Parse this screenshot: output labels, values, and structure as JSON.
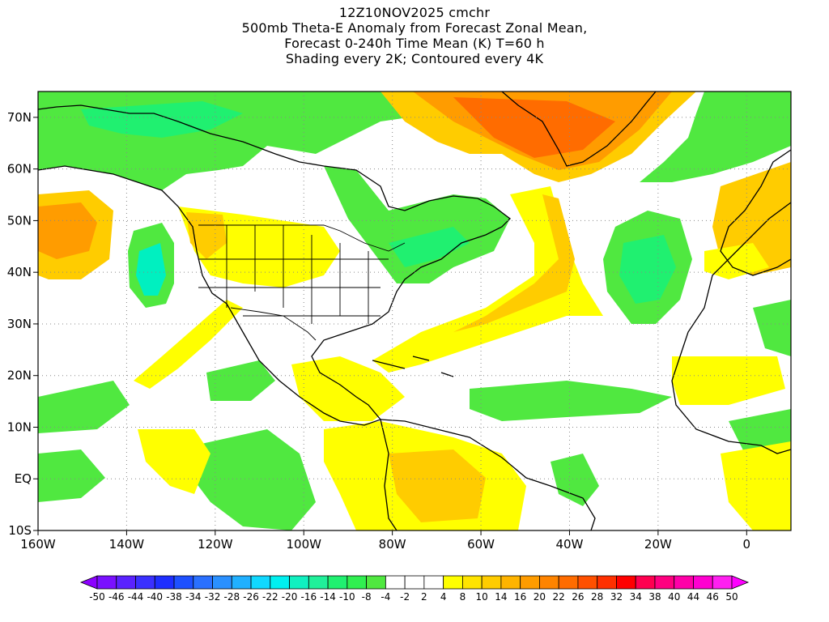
{
  "titles": [
    "12Z10NOV2025 cmchr",
    "500mb Theta-E Anomaly from Forecast Zonal Mean,",
    "Forecast 0-240h Time Mean (K) T=60 h",
    "Shading every 2K; Contoured every 4K"
  ],
  "axes": {
    "lon_labels": [
      "160W",
      "140W",
      "120W",
      "100W",
      "80W",
      "60W",
      "40W",
      "20W",
      "0"
    ],
    "lon_values": [
      -160,
      -140,
      -120,
      -100,
      -80,
      -60,
      -40,
      -20,
      0
    ],
    "lat_labels": [
      "70N",
      "60N",
      "50N",
      "40N",
      "30N",
      "20N",
      "10N",
      "EQ",
      "10S"
    ],
    "lat_values": [
      70,
      60,
      50,
      40,
      30,
      20,
      10,
      0,
      -10
    ],
    "lon_range": [
      -160,
      10
    ],
    "lat_range": [
      -10,
      75
    ],
    "grid": true
  },
  "colorbar": {
    "labels": [
      "-50",
      "-46",
      "-44",
      "-40",
      "-38",
      "-34",
      "-32",
      "-28",
      "-26",
      "-22",
      "-20",
      "-16",
      "-14",
      "-10",
      "-8",
      "-4",
      "-2",
      "2",
      "4",
      "8",
      "10",
      "14",
      "16",
      "20",
      "22",
      "26",
      "28",
      "32",
      "34",
      "38",
      "40",
      "44",
      "46",
      "50"
    ],
    "colors": [
      "#8c00ff",
      "#7a10ff",
      "#5a22ff",
      "#3a30ff",
      "#1e2eff",
      "#1e50ff",
      "#2a70ff",
      "#2a90ff",
      "#20b0ff",
      "#10d8ff",
      "#00f0f0",
      "#10f0c0",
      "#20f09a",
      "#20f070",
      "#30ef50",
      "#50e840",
      "#ffffff",
      "#ffffff",
      "#ffffff",
      "#ffff00",
      "#ffe400",
      "#ffcc00",
      "#ffb400",
      "#ff9c00",
      "#ff8400",
      "#ff6c00",
      "#ff5000",
      "#ff3000",
      "#ff0000",
      "#ff0050",
      "#ff0080",
      "#ff00a8",
      "#ff00d0",
      "#ff20f0",
      "#ff00ff"
    ]
  },
  "colors": {
    "positive_light": "#ffff00",
    "positive_mid": "#ffcc00",
    "positive_strong": "#ff9c00",
    "positive_peak": "#ff6c00",
    "negative_light": "#50e840",
    "negative_mid": "#20f070",
    "negative_strong": "#00f0c0"
  }
}
